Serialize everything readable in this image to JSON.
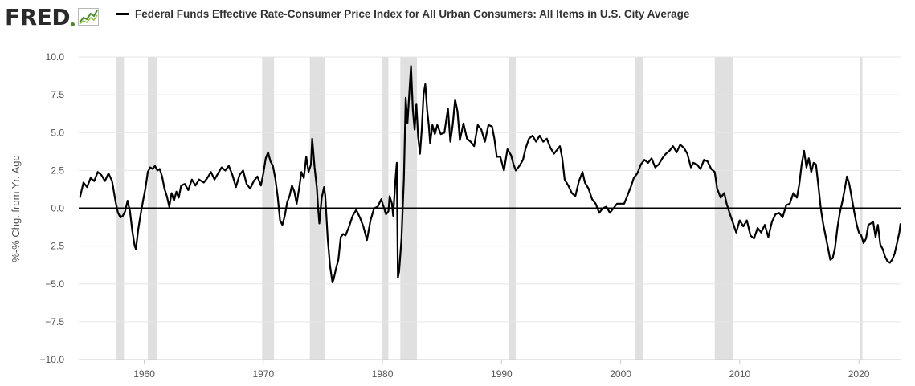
{
  "brand": {
    "name": "FRED",
    "logo_icon": "fred-sparkline-logo",
    "logo_color": "#2b2b2b",
    "accent": "#4b8a2f"
  },
  "legend": {
    "label": "Federal Funds Effective Rate-Consumer Price Index for All Urban Consumers: All Items in U.S. City Average",
    "color": "#000000"
  },
  "chart_data": {
    "type": "line",
    "title": "Federal Funds Effective Rate-Consumer Price Index for All Urban Consumers: All Items in U.S. City Average",
    "ylabel": "%-% Chg. from Yr. Ago",
    "xlabel": "",
    "xlim": [
      1954.5,
      2023.5
    ],
    "ylim": [
      -10,
      10
    ],
    "x_ticks": [
      1960,
      1970,
      1980,
      1990,
      2000,
      2010,
      2020
    ],
    "y_ticks": [
      10.0,
      7.5,
      5.0,
      2.5,
      0.0,
      -2.5,
      -5.0,
      -7.5,
      -10.0
    ],
    "y_tick_labels": [
      "10.0",
      "7.5",
      "5.0",
      "2.5",
      "0.0",
      "−2.5",
      "−5.0",
      "−7.5",
      "−10.0"
    ],
    "grid": "horizontal",
    "zero_line": true,
    "line_color": "#000000",
    "recession_color": "#e0e0e0",
    "recessions": [
      [
        1957.6,
        1958.3
      ],
      [
        1960.3,
        1961.1
      ],
      [
        1969.9,
        1970.9
      ],
      [
        1973.9,
        1975.2
      ],
      [
        1980.0,
        1980.5
      ],
      [
        1981.5,
        1982.9
      ],
      [
        1990.6,
        1991.2
      ],
      [
        2001.2,
        2001.9
      ],
      [
        2007.9,
        2009.4
      ],
      [
        2020.1,
        2020.3
      ]
    ],
    "series": [
      {
        "values": [
          [
            1954.6,
            0.7
          ],
          [
            1954.9,
            1.7
          ],
          [
            1955.2,
            1.4
          ],
          [
            1955.5,
            2.0
          ],
          [
            1955.8,
            1.8
          ],
          [
            1956.1,
            2.4
          ],
          [
            1956.4,
            2.2
          ],
          [
            1956.7,
            1.8
          ],
          [
            1957.0,
            2.3
          ],
          [
            1957.3,
            1.8
          ],
          [
            1957.6,
            0.4
          ],
          [
            1957.8,
            -0.3
          ],
          [
            1958.0,
            -0.6
          ],
          [
            1958.2,
            -0.5
          ],
          [
            1958.4,
            -0.2
          ],
          [
            1958.6,
            0.5
          ],
          [
            1958.8,
            -0.2
          ],
          [
            1959.0,
            -1.5
          ],
          [
            1959.2,
            -2.5
          ],
          [
            1959.3,
            -2.7
          ],
          [
            1959.5,
            -1.4
          ],
          [
            1959.7,
            -0.4
          ],
          [
            1959.9,
            0.5
          ],
          [
            1960.1,
            1.3
          ],
          [
            1960.3,
            2.4
          ],
          [
            1960.5,
            2.7
          ],
          [
            1960.7,
            2.6
          ],
          [
            1960.9,
            2.8
          ],
          [
            1961.1,
            2.5
          ],
          [
            1961.3,
            2.6
          ],
          [
            1961.5,
            2.1
          ],
          [
            1961.7,
            1.3
          ],
          [
            1961.9,
            0.8
          ],
          [
            1962.1,
            0.1
          ],
          [
            1962.3,
            1.0
          ],
          [
            1962.5,
            0.5
          ],
          [
            1962.7,
            1.1
          ],
          [
            1962.9,
            0.7
          ],
          [
            1963.1,
            1.5
          ],
          [
            1963.4,
            1.6
          ],
          [
            1963.7,
            1.2
          ],
          [
            1964.0,
            1.9
          ],
          [
            1964.3,
            1.5
          ],
          [
            1964.6,
            1.9
          ],
          [
            1965.0,
            1.7
          ],
          [
            1965.3,
            2.0
          ],
          [
            1965.6,
            2.4
          ],
          [
            1965.9,
            1.9
          ],
          [
            1966.2,
            2.3
          ],
          [
            1966.5,
            2.7
          ],
          [
            1966.8,
            2.5
          ],
          [
            1967.1,
            2.8
          ],
          [
            1967.4,
            2.2
          ],
          [
            1967.7,
            1.4
          ],
          [
            1968.0,
            2.2
          ],
          [
            1968.3,
            2.5
          ],
          [
            1968.6,
            1.6
          ],
          [
            1968.9,
            1.3
          ],
          [
            1969.2,
            1.8
          ],
          [
            1969.5,
            2.1
          ],
          [
            1969.8,
            1.5
          ],
          [
            1970.0,
            2.3
          ],
          [
            1970.2,
            3.3
          ],
          [
            1970.4,
            3.7
          ],
          [
            1970.6,
            3.1
          ],
          [
            1970.8,
            2.8
          ],
          [
            1971.0,
            2.0
          ],
          [
            1971.2,
            0.8
          ],
          [
            1971.4,
            -0.8
          ],
          [
            1971.6,
            -1.1
          ],
          [
            1971.8,
            -0.5
          ],
          [
            1972.0,
            0.4
          ],
          [
            1972.2,
            0.8
          ],
          [
            1972.4,
            1.5
          ],
          [
            1972.6,
            1.1
          ],
          [
            1972.8,
            0.3
          ],
          [
            1973.0,
            1.3
          ],
          [
            1973.2,
            2.4
          ],
          [
            1973.4,
            2.0
          ],
          [
            1973.6,
            3.4
          ],
          [
            1973.8,
            2.4
          ],
          [
            1974.0,
            2.9
          ],
          [
            1974.1,
            4.6
          ],
          [
            1974.3,
            2.7
          ],
          [
            1974.5,
            1.3
          ],
          [
            1974.6,
            0.0
          ],
          [
            1974.7,
            -1.0
          ],
          [
            1974.9,
            0.7
          ],
          [
            1975.1,
            1.4
          ],
          [
            1975.2,
            0.8
          ],
          [
            1975.4,
            -2.0
          ],
          [
            1975.6,
            -3.8
          ],
          [
            1975.8,
            -4.9
          ],
          [
            1975.9,
            -4.7
          ],
          [
            1976.1,
            -4.0
          ],
          [
            1976.3,
            -3.4
          ],
          [
            1976.5,
            -1.9
          ],
          [
            1976.7,
            -1.7
          ],
          [
            1976.9,
            -1.8
          ],
          [
            1977.2,
            -1.2
          ],
          [
            1977.5,
            -0.5
          ],
          [
            1977.8,
            -0.1
          ],
          [
            1978.1,
            -0.6
          ],
          [
            1978.4,
            -1.2
          ],
          [
            1978.7,
            -2.1
          ],
          [
            1979.0,
            -0.8
          ],
          [
            1979.3,
            0.0
          ],
          [
            1979.6,
            0.1
          ],
          [
            1979.9,
            0.6
          ],
          [
            1980.1,
            0.1
          ],
          [
            1980.3,
            -0.4
          ],
          [
            1980.5,
            -0.2
          ],
          [
            1980.6,
            0.8
          ],
          [
            1980.8,
            0.3
          ],
          [
            1980.9,
            -0.5
          ],
          [
            1981.1,
            2.0
          ],
          [
            1981.2,
            3.0
          ],
          [
            1981.3,
            -4.6
          ],
          [
            1981.4,
            -4.2
          ],
          [
            1981.6,
            -2.0
          ],
          [
            1981.8,
            2.0
          ],
          [
            1981.95,
            7.3
          ],
          [
            1982.1,
            5.6
          ],
          [
            1982.3,
            8.2
          ],
          [
            1982.4,
            9.4
          ],
          [
            1982.55,
            6.5
          ],
          [
            1982.7,
            5.2
          ],
          [
            1982.85,
            6.9
          ],
          [
            1983.0,
            4.7
          ],
          [
            1983.15,
            3.6
          ],
          [
            1983.3,
            5.2
          ],
          [
            1983.45,
            7.5
          ],
          [
            1983.6,
            8.2
          ],
          [
            1983.75,
            6.5
          ],
          [
            1983.9,
            5.4
          ],
          [
            1984.0,
            4.3
          ],
          [
            1984.2,
            5.5
          ],
          [
            1984.4,
            4.9
          ],
          [
            1984.6,
            5.5
          ],
          [
            1984.9,
            4.9
          ],
          [
            1985.2,
            5.0
          ],
          [
            1985.5,
            6.6
          ],
          [
            1985.7,
            4.4
          ],
          [
            1985.9,
            5.5
          ],
          [
            1986.1,
            7.2
          ],
          [
            1986.3,
            6.4
          ],
          [
            1986.5,
            4.5
          ],
          [
            1986.8,
            5.6
          ],
          [
            1987.1,
            4.6
          ],
          [
            1987.4,
            4.4
          ],
          [
            1987.7,
            4.1
          ],
          [
            1988.0,
            5.5
          ],
          [
            1988.3,
            5.2
          ],
          [
            1988.6,
            4.4
          ],
          [
            1988.9,
            5.5
          ],
          [
            1989.2,
            5.4
          ],
          [
            1989.4,
            4.6
          ],
          [
            1989.6,
            3.4
          ],
          [
            1989.9,
            3.4
          ],
          [
            1990.2,
            2.5
          ],
          [
            1990.5,
            3.9
          ],
          [
            1990.8,
            3.5
          ],
          [
            1991.0,
            2.9
          ],
          [
            1991.2,
            2.5
          ],
          [
            1991.5,
            2.8
          ],
          [
            1991.8,
            3.2
          ],
          [
            1992.0,
            3.9
          ],
          [
            1992.3,
            4.6
          ],
          [
            1992.6,
            4.8
          ],
          [
            1992.9,
            4.4
          ],
          [
            1993.2,
            4.8
          ],
          [
            1993.5,
            4.4
          ],
          [
            1993.8,
            4.6
          ],
          [
            1994.1,
            4.0
          ],
          [
            1994.4,
            3.6
          ],
          [
            1994.7,
            3.9
          ],
          [
            1994.9,
            4.1
          ],
          [
            1995.1,
            3.3
          ],
          [
            1995.3,
            1.9
          ],
          [
            1995.6,
            1.5
          ],
          [
            1995.9,
            1.0
          ],
          [
            1996.2,
            0.8
          ],
          [
            1996.5,
            1.8
          ],
          [
            1996.8,
            2.4
          ],
          [
            1997.0,
            1.7
          ],
          [
            1997.3,
            1.3
          ],
          [
            1997.6,
            0.6
          ],
          [
            1997.9,
            0.3
          ],
          [
            1998.2,
            -0.3
          ],
          [
            1998.5,
            0.0
          ],
          [
            1998.8,
            0.1
          ],
          [
            1999.1,
            -0.3
          ],
          [
            1999.4,
            0.0
          ],
          [
            1999.7,
            0.3
          ],
          [
            2000.0,
            0.3
          ],
          [
            2000.3,
            0.3
          ],
          [
            2000.6,
            0.9
          ],
          [
            2000.9,
            1.5
          ],
          [
            2001.1,
            2.0
          ],
          [
            2001.4,
            2.3
          ],
          [
            2001.7,
            2.9
          ],
          [
            2002.0,
            3.2
          ],
          [
            2002.3,
            3.0
          ],
          [
            2002.6,
            3.3
          ],
          [
            2002.9,
            2.7
          ],
          [
            2003.2,
            2.9
          ],
          [
            2003.5,
            3.3
          ],
          [
            2003.8,
            3.6
          ],
          [
            2004.1,
            3.8
          ],
          [
            2004.4,
            4.1
          ],
          [
            2004.7,
            3.7
          ],
          [
            2005.0,
            4.2
          ],
          [
            2005.3,
            4.0
          ],
          [
            2005.6,
            3.6
          ],
          [
            2005.9,
            2.7
          ],
          [
            2006.1,
            3.0
          ],
          [
            2006.4,
            2.9
          ],
          [
            2006.7,
            2.6
          ],
          [
            2007.0,
            3.2
          ],
          [
            2007.3,
            3.1
          ],
          [
            2007.6,
            2.6
          ],
          [
            2007.9,
            2.4
          ],
          [
            2008.1,
            1.3
          ],
          [
            2008.4,
            0.7
          ],
          [
            2008.7,
            1.0
          ],
          [
            2008.9,
            0.3
          ],
          [
            2009.1,
            -0.2
          ],
          [
            2009.4,
            -0.9
          ],
          [
            2009.7,
            -1.6
          ],
          [
            2010.0,
            -0.8
          ],
          [
            2010.3,
            -1.2
          ],
          [
            2010.6,
            -0.8
          ],
          [
            2010.9,
            -1.8
          ],
          [
            2011.2,
            -2.0
          ],
          [
            2011.5,
            -1.3
          ],
          [
            2011.8,
            -1.6
          ],
          [
            2012.1,
            -1.1
          ],
          [
            2012.4,
            -1.9
          ],
          [
            2012.7,
            -0.9
          ],
          [
            2013.0,
            -0.4
          ],
          [
            2013.3,
            -0.3
          ],
          [
            2013.6,
            -0.6
          ],
          [
            2013.9,
            0.2
          ],
          [
            2014.2,
            0.3
          ],
          [
            2014.5,
            1.0
          ],
          [
            2014.8,
            0.7
          ],
          [
            2015.0,
            1.6
          ],
          [
            2015.2,
            2.9
          ],
          [
            2015.4,
            3.8
          ],
          [
            2015.6,
            2.7
          ],
          [
            2015.8,
            3.3
          ],
          [
            2016.0,
            2.4
          ],
          [
            2016.2,
            3.0
          ],
          [
            2016.4,
            2.9
          ],
          [
            2016.6,
            1.5
          ],
          [
            2016.8,
            0.0
          ],
          [
            2017.0,
            -1.0
          ],
          [
            2017.2,
            -1.8
          ],
          [
            2017.4,
            -2.6
          ],
          [
            2017.6,
            -3.4
          ],
          [
            2017.8,
            -3.3
          ],
          [
            2018.0,
            -2.6
          ],
          [
            2018.2,
            -1.3
          ],
          [
            2018.4,
            -0.3
          ],
          [
            2018.6,
            0.4
          ],
          [
            2018.8,
            1.2
          ],
          [
            2019.0,
            2.1
          ],
          [
            2019.2,
            1.6
          ],
          [
            2019.4,
            0.7
          ],
          [
            2019.6,
            -0.2
          ],
          [
            2019.8,
            -1.0
          ],
          [
            2020.0,
            -1.6
          ],
          [
            2020.2,
            -1.8
          ],
          [
            2020.4,
            -2.3
          ],
          [
            2020.6,
            -2.0
          ],
          [
            2020.8,
            -1.1
          ],
          [
            2021.0,
            -1.0
          ],
          [
            2021.2,
            -0.9
          ],
          [
            2021.4,
            -1.9
          ],
          [
            2021.6,
            -1.1
          ],
          [
            2021.8,
            -2.4
          ],
          [
            2022.0,
            -2.7
          ],
          [
            2022.2,
            -3.2
          ],
          [
            2022.4,
            -3.5
          ],
          [
            2022.6,
            -3.6
          ],
          [
            2022.8,
            -3.4
          ],
          [
            2023.0,
            -3.0
          ],
          [
            2023.2,
            -2.3
          ],
          [
            2023.4,
            -1.6
          ],
          [
            2023.5,
            -1.0
          ]
        ]
      }
    ]
  }
}
